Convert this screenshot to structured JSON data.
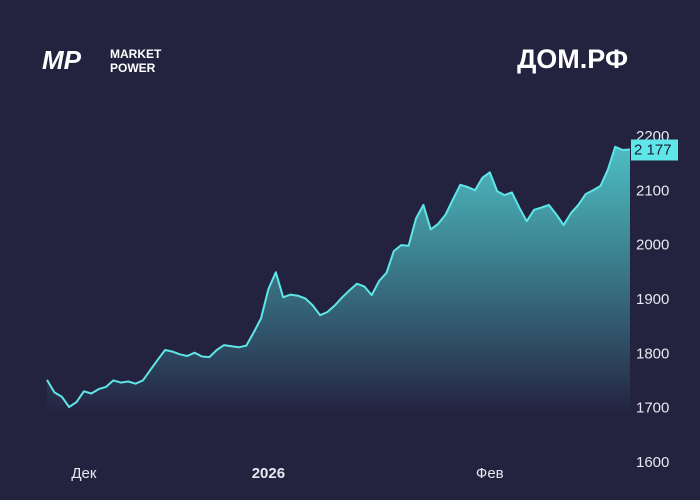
{
  "brand": {
    "mark": "MP",
    "lines": [
      "MARKET",
      "POWER"
    ]
  },
  "chart_data": {
    "type": "area",
    "title": "ДОМ.РФ",
    "categories": [
      null,
      null,
      null,
      null,
      null,
      "Дек",
      null,
      null,
      null,
      null,
      null,
      null,
      null,
      null,
      null,
      null,
      null,
      null,
      null,
      null,
      null,
      null,
      null,
      null,
      null,
      null,
      null,
      null,
      null,
      null,
      "2026",
      null,
      null,
      null,
      null,
      null,
      null,
      null,
      null,
      null,
      null,
      null,
      null,
      null,
      null,
      null,
      null,
      null,
      null,
      null,
      null,
      null,
      null,
      null,
      null,
      null,
      null,
      null,
      null,
      null,
      "Фев",
      null,
      null,
      null,
      null,
      null,
      null,
      null,
      null,
      null,
      null,
      null,
      null,
      null,
      null,
      null,
      null,
      null,
      null,
      null
    ],
    "values": [
      1753,
      1730,
      1722,
      1703,
      1712,
      1732,
      1728,
      1736,
      1740,
      1752,
      1748,
      1750,
      1746,
      1752,
      1771,
      1790,
      1808,
      1805,
      1800,
      1797,
      1803,
      1796,
      1795,
      1808,
      1817,
      1815,
      1813,
      1816,
      1840,
      1866,
      1920,
      1951,
      1905,
      1910,
      1908,
      1903,
      1890,
      1872,
      1878,
      1890,
      1905,
      1918,
      1930,
      1925,
      1909,
      1935,
      1950,
      1990,
      2001,
      2000,
      2050,
      2075,
      2030,
      2040,
      2057,
      2085,
      2112,
      2108,
      2102,
      2125,
      2135,
      2100,
      2093,
      2098,
      2070,
      2045,
      2066,
      2070,
      2075,
      2058,
      2038,
      2060,
      2075,
      2095,
      2102,
      2110,
      2140,
      2182,
      2176,
      2177
    ],
    "color": "#5fe6e8",
    "ylim": [
      1600,
      2200
    ],
    "yticks": [
      1600,
      1700,
      1800,
      1900,
      2000,
      2100,
      2200
    ],
    "current_price": {
      "value": 2177,
      "label": "2 177"
    },
    "grid": false
  }
}
